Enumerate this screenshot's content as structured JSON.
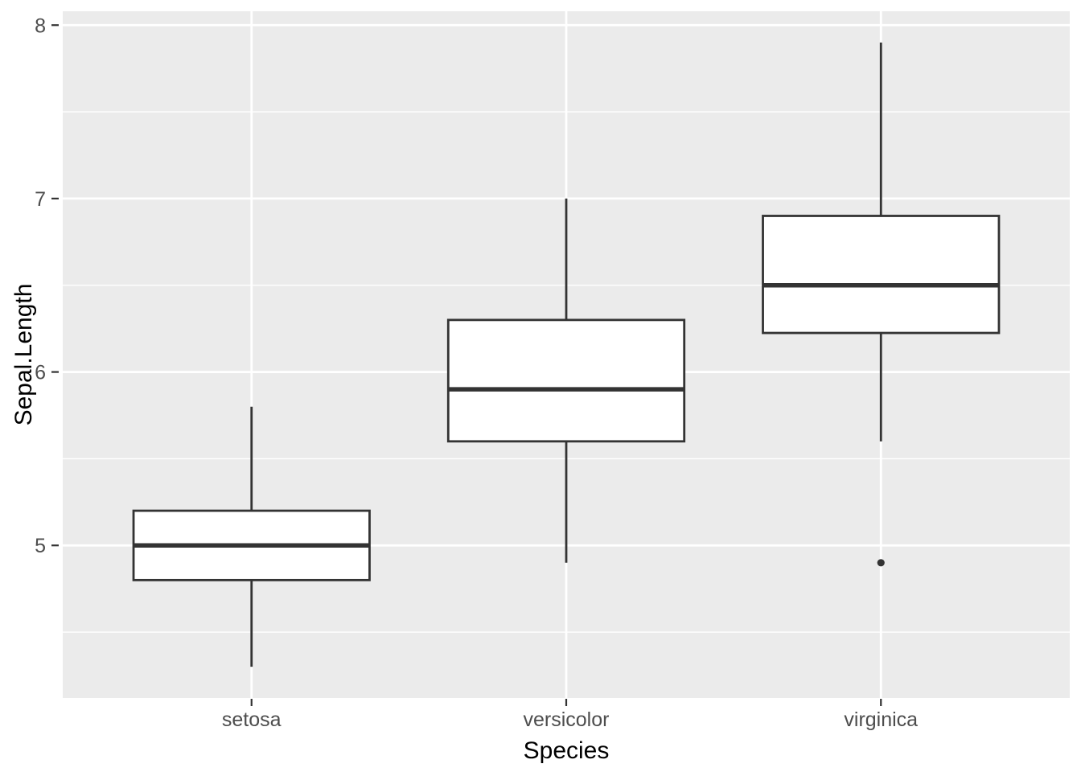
{
  "chart_data": {
    "type": "box",
    "title": "",
    "xlabel": "Species",
    "ylabel": "Sepal.Length",
    "categories": [
      "setosa",
      "versicolor",
      "virginica"
    ],
    "y_ticks": [
      5,
      6,
      7,
      8
    ],
    "y_minor_ticks": [
      4.5,
      5.5,
      6.5,
      7.5
    ],
    "ylim": [
      4.12,
      8.08
    ],
    "x_positions": [
      1,
      2,
      3
    ],
    "x_range": [
      0.4,
      3.6
    ],
    "box_width": 0.75,
    "grid": true,
    "legend": "none",
    "series": [
      {
        "name": "setosa",
        "lower_whisker": 4.3,
        "q1": 4.8,
        "median": 5.0,
        "q3": 5.2,
        "upper_whisker": 5.8,
        "outliers": []
      },
      {
        "name": "versicolor",
        "lower_whisker": 4.9,
        "q1": 5.6,
        "median": 5.9,
        "q3": 6.3,
        "upper_whisker": 7.0,
        "outliers": []
      },
      {
        "name": "virginica",
        "lower_whisker": 5.6,
        "q1": 6.225,
        "median": 6.5,
        "q3": 6.9,
        "upper_whisker": 7.9,
        "outliers": [
          4.9
        ]
      }
    ],
    "colors": {
      "panel_background": "#EBEBEB",
      "grid": "#FFFFFF",
      "box_stroke": "#333333",
      "box_fill": "#FFFFFF",
      "outlier": "#333333",
      "tick_mark": "#333333",
      "tick_label": "#4D4D4D",
      "axis_title": "#000000",
      "figure_background": "#FFFFFF"
    }
  }
}
